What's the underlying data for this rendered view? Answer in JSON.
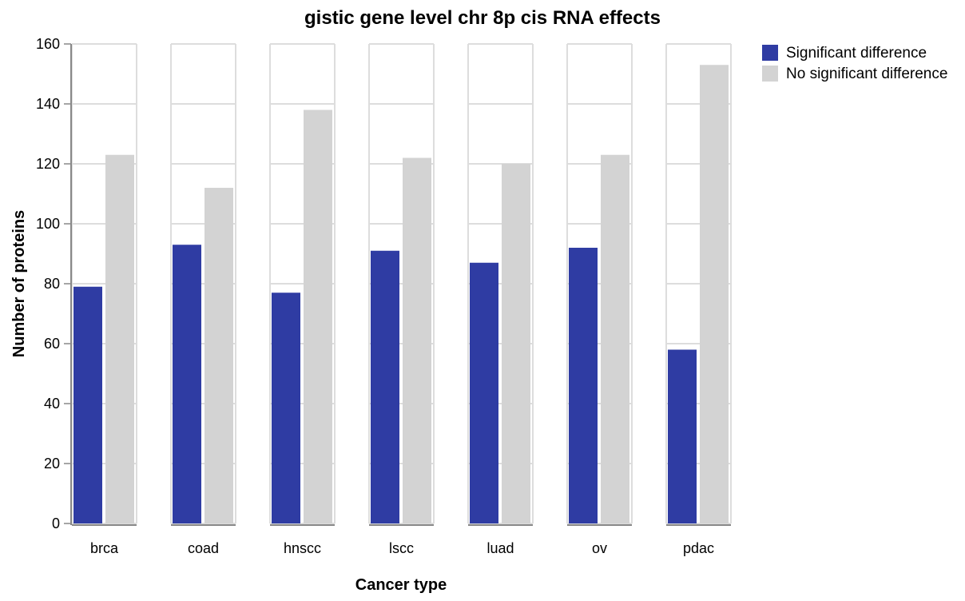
{
  "chart_data": {
    "type": "bar",
    "title": "gistic gene level chr 8p cis RNA effects",
    "xlabel": "Cancer type",
    "ylabel": "Number of proteins",
    "categories": [
      "brca",
      "coad",
      "hnscc",
      "lscc",
      "luad",
      "ov",
      "pdac"
    ],
    "series": [
      {
        "name": "Significant difference",
        "color": "#2f3ca3",
        "values": [
          79,
          93,
          77,
          91,
          87,
          92,
          58
        ]
      },
      {
        "name": "No significant difference",
        "color": "#d3d3d3",
        "values": [
          123,
          112,
          138,
          122,
          120,
          123,
          153
        ]
      }
    ],
    "ylim": [
      0,
      160
    ],
    "yticks": [
      0,
      20,
      40,
      60,
      80,
      100,
      120,
      140,
      160
    ],
    "grid": true,
    "legend": "top-right"
  }
}
